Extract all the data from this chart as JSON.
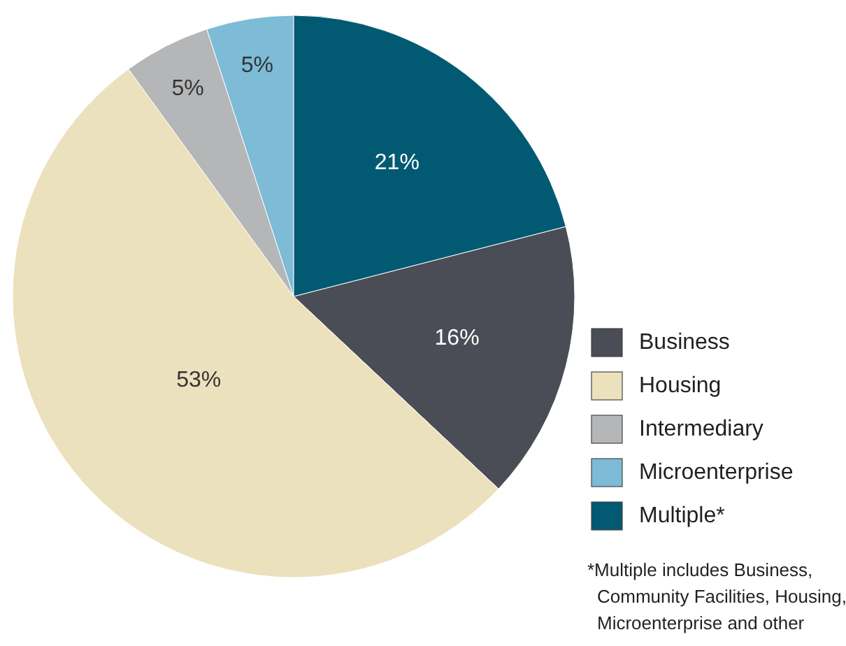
{
  "chart_data": {
    "type": "pie",
    "categories": [
      "Business",
      "Housing",
      "Intermediary",
      "Microenterprise",
      "Multiple*"
    ],
    "values": [
      16,
      53,
      5,
      5,
      21
    ],
    "colors": [
      "#4a4d56",
      "#ece1bd",
      "#b5b6b8",
      "#7dbbd6",
      "#015a72"
    ],
    "value_labels": [
      "16%",
      "53%",
      "5%",
      "5%",
      "21%"
    ],
    "legend": "right",
    "annotations": [
      "*Multiple includes Business, Community Facilities, Housing, Microenterprise and other"
    ]
  }
}
